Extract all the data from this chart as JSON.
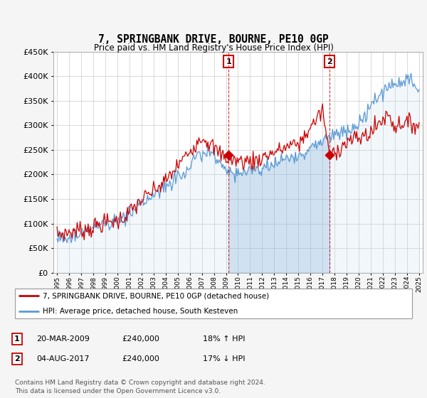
{
  "title": "7, SPRINGBANK DRIVE, BOURNE, PE10 0GP",
  "subtitle": "Price paid vs. HM Land Registry's House Price Index (HPI)",
  "ylim": [
    0,
    450000
  ],
  "ytick_vals": [
    0,
    50000,
    100000,
    150000,
    200000,
    250000,
    300000,
    350000,
    400000,
    450000
  ],
  "hpi_color": "#5b9bd5",
  "price_color": "#cc0000",
  "marker1_year": 2009.22,
  "marker2_year": 2017.59,
  "marker1_price": 240000,
  "marker2_price": 240000,
  "legend_line1": "7, SPRINGBANK DRIVE, BOURNE, PE10 0GP (detached house)",
  "legend_line2": "HPI: Average price, detached house, South Kesteven",
  "table_rows": [
    {
      "num": "1",
      "date": "20-MAR-2009",
      "price": "£240,000",
      "change": "18% ↑ HPI"
    },
    {
      "num": "2",
      "date": "04-AUG-2017",
      "price": "£240,000",
      "change": "17% ↓ HPI"
    }
  ],
  "footnote": "Contains HM Land Registry data © Crown copyright and database right 2024.\nThis data is licensed under the Open Government Licence v3.0."
}
